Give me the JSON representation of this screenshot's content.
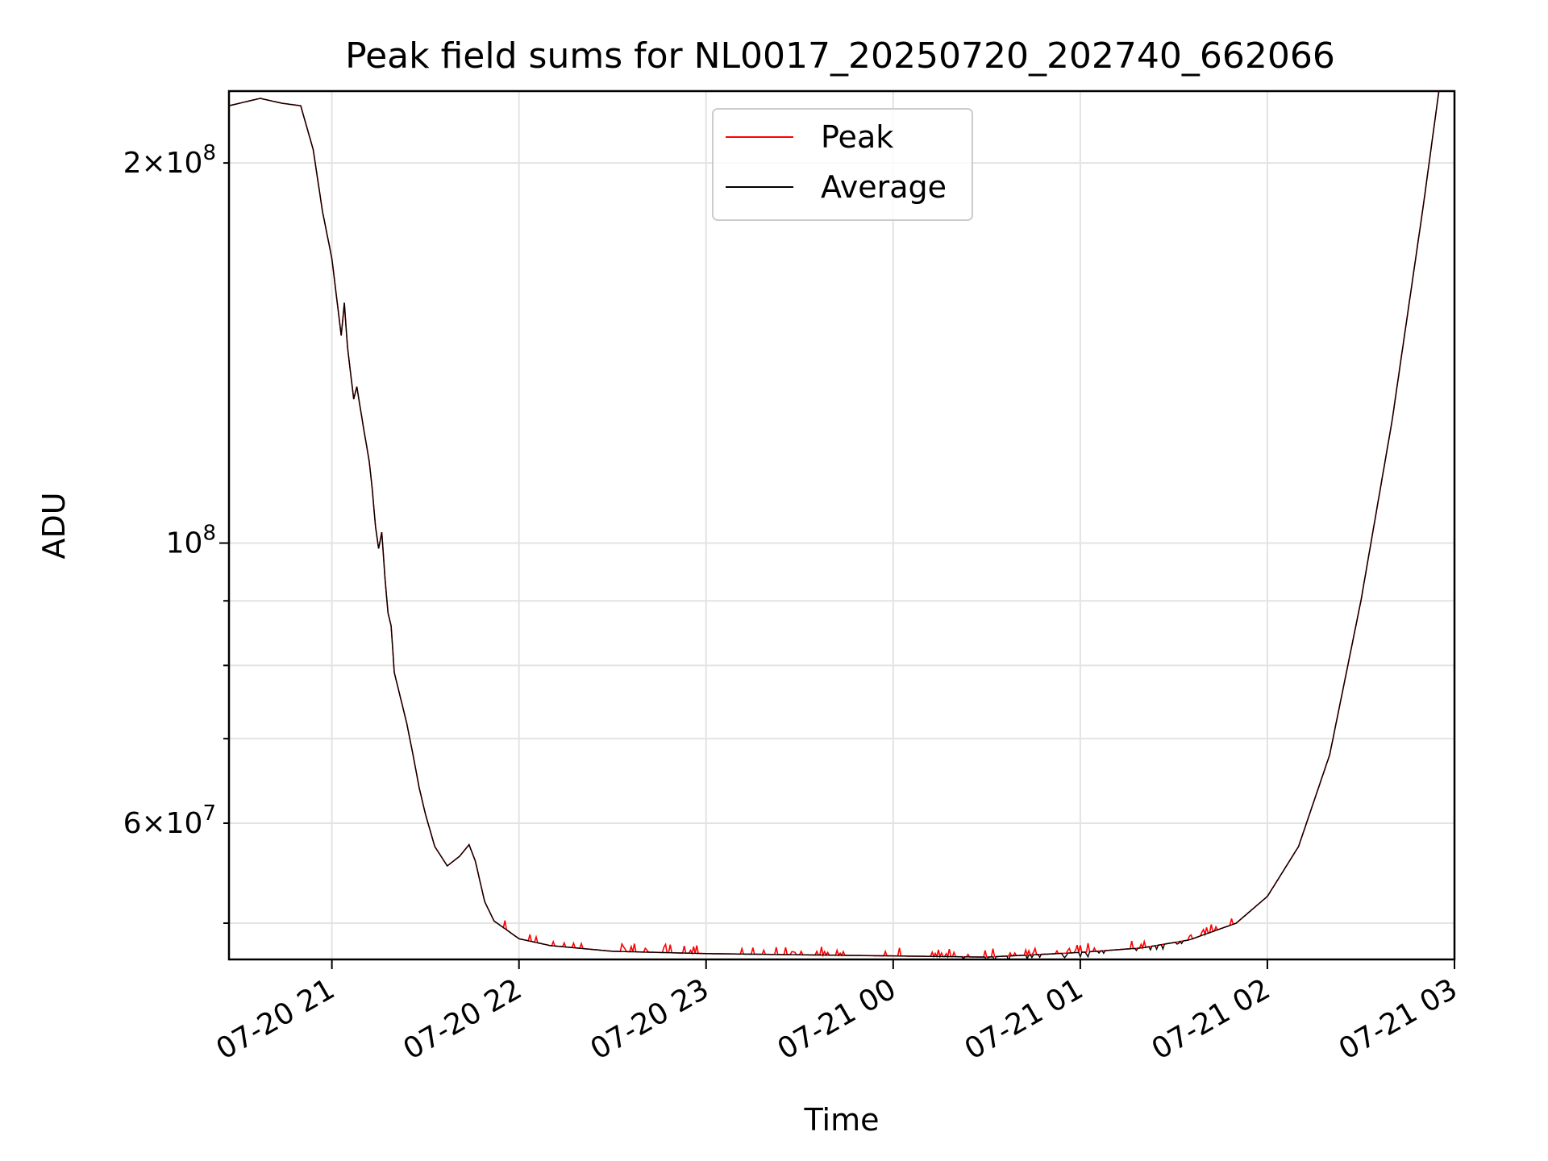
{
  "chart_data": {
    "type": "line",
    "title": "Peak field sums for NL0017_20250720_202740_662066",
    "xlabel": "Time",
    "ylabel": "ADU",
    "x_ticks": [
      "07-20 21",
      "07-20 22",
      "07-20 23",
      "07-21 00",
      "07-21 01",
      "07-21 02",
      "07-21 03"
    ],
    "y_ticks_major": [
      {
        "value": 100000000,
        "mantissa": "",
        "base": "10",
        "exp": "8"
      }
    ],
    "y_ticks_minor_labeled": [
      {
        "value": 60000000,
        "mantissa": "6",
        "base": "10",
        "exp": "7"
      },
      {
        "value": 200000000,
        "mantissa": "2",
        "base": "10",
        "exp": "8"
      }
    ],
    "y_ticks_minor_unlabeled": [
      50000000,
      70000000,
      80000000,
      90000000
    ],
    "x_range": [
      "2025-07-20 20:27",
      "2025-07-21 03:00"
    ],
    "y_range": [
      46800000,
      228000000
    ],
    "y_scale": "log",
    "grid": true,
    "legend_position": "upper-center",
    "series": [
      {
        "name": "Peak",
        "color": "#ff0000",
        "jitter": true,
        "points": [
          [
            "2025-07-20 20:27",
            222000000
          ],
          [
            "2025-07-20 20:37",
            225000000
          ],
          [
            "2025-07-20 20:44",
            223000000
          ],
          [
            "2025-07-20 20:50",
            222000000
          ],
          [
            "2025-07-20 20:54",
            205000000
          ],
          [
            "2025-07-20 20:57",
            183000000
          ],
          [
            "2025-07-20 21:00",
            168000000
          ],
          [
            "2025-07-20 21:03",
            146000000
          ],
          [
            "2025-07-20 21:04",
            155000000
          ],
          [
            "2025-07-20 21:05",
            143000000
          ],
          [
            "2025-07-20 21:07",
            130000000
          ],
          [
            "2025-07-20 21:08",
            133000000
          ],
          [
            "2025-07-20 21:10",
            124000000
          ],
          [
            "2025-07-20 21:12",
            116000000
          ],
          [
            "2025-07-20 21:13",
            110000000
          ],
          [
            "2025-07-20 21:14",
            103000000
          ],
          [
            "2025-07-20 21:15",
            99000000
          ],
          [
            "2025-07-20 21:16",
            102000000
          ],
          [
            "2025-07-20 21:17",
            94000000
          ],
          [
            "2025-07-20 21:18",
            88000000
          ],
          [
            "2025-07-20 21:19",
            86000000
          ],
          [
            "2025-07-20 21:20",
            79000000
          ],
          [
            "2025-07-20 21:24",
            72000000
          ],
          [
            "2025-07-20 21:26",
            68000000
          ],
          [
            "2025-07-20 21:28",
            64000000
          ],
          [
            "2025-07-20 21:30",
            61000000
          ],
          [
            "2025-07-20 21:33",
            57500000
          ],
          [
            "2025-07-20 21:37",
            55500000
          ],
          [
            "2025-07-20 21:41",
            56500000
          ],
          [
            "2025-07-20 21:44",
            57700000
          ],
          [
            "2025-07-20 21:46",
            56000000
          ],
          [
            "2025-07-20 21:49",
            52000000
          ],
          [
            "2025-07-20 21:52",
            50200000
          ],
          [
            "2025-07-20 21:57",
            49200000
          ],
          [
            "2025-07-20 22:00",
            48600000
          ],
          [
            "2025-07-20 22:10",
            48000000
          ],
          [
            "2025-07-20 22:30",
            47500000
          ],
          [
            "2025-07-20 23:00",
            47300000
          ],
          [
            "2025-07-20 23:30",
            47200000
          ],
          [
            "2025-07-21 00:00",
            47100000
          ],
          [
            "2025-07-21 00:30",
            47000000
          ],
          [
            "2025-07-21 01:00",
            47400000
          ],
          [
            "2025-07-21 01:20",
            47800000
          ],
          [
            "2025-07-21 01:35",
            48500000
          ],
          [
            "2025-07-21 01:50",
            50000000
          ],
          [
            "2025-07-21 02:00",
            52500000
          ],
          [
            "2025-07-21 02:10",
            57500000
          ],
          [
            "2025-07-21 02:20",
            68000000
          ],
          [
            "2025-07-21 02:30",
            90000000
          ],
          [
            "2025-07-21 02:40",
            125000000
          ],
          [
            "2025-07-21 02:50",
            185000000
          ],
          [
            "2025-07-21 02:55",
            228000000
          ]
        ]
      },
      {
        "name": "Average",
        "color": "#000000",
        "jitter": false,
        "points": [
          [
            "2025-07-20 20:27",
            222000000
          ],
          [
            "2025-07-20 20:37",
            225000000
          ],
          [
            "2025-07-20 20:44",
            223000000
          ],
          [
            "2025-07-20 20:50",
            222000000
          ],
          [
            "2025-07-20 20:54",
            205000000
          ],
          [
            "2025-07-20 20:57",
            183000000
          ],
          [
            "2025-07-20 21:00",
            168000000
          ],
          [
            "2025-07-20 21:03",
            146000000
          ],
          [
            "2025-07-20 21:04",
            155000000
          ],
          [
            "2025-07-20 21:05",
            143000000
          ],
          [
            "2025-07-20 21:07",
            130000000
          ],
          [
            "2025-07-20 21:08",
            133000000
          ],
          [
            "2025-07-20 21:10",
            124000000
          ],
          [
            "2025-07-20 21:12",
            116000000
          ],
          [
            "2025-07-20 21:13",
            110000000
          ],
          [
            "2025-07-20 21:14",
            103000000
          ],
          [
            "2025-07-20 21:15",
            99000000
          ],
          [
            "2025-07-20 21:16",
            102000000
          ],
          [
            "2025-07-20 21:17",
            94000000
          ],
          [
            "2025-07-20 21:18",
            88000000
          ],
          [
            "2025-07-20 21:19",
            86000000
          ],
          [
            "2025-07-20 21:20",
            79000000
          ],
          [
            "2025-07-20 21:24",
            72000000
          ],
          [
            "2025-07-20 21:26",
            68000000
          ],
          [
            "2025-07-20 21:28",
            64000000
          ],
          [
            "2025-07-20 21:30",
            61000000
          ],
          [
            "2025-07-20 21:33",
            57500000
          ],
          [
            "2025-07-20 21:37",
            55500000
          ],
          [
            "2025-07-20 21:41",
            56500000
          ],
          [
            "2025-07-20 21:44",
            57700000
          ],
          [
            "2025-07-20 21:46",
            56000000
          ],
          [
            "2025-07-20 21:49",
            52000000
          ],
          [
            "2025-07-20 21:52",
            50200000
          ],
          [
            "2025-07-20 21:57",
            49200000
          ],
          [
            "2025-07-20 22:00",
            48600000
          ],
          [
            "2025-07-20 22:10",
            48000000
          ],
          [
            "2025-07-20 22:30",
            47500000
          ],
          [
            "2025-07-20 23:00",
            47300000
          ],
          [
            "2025-07-20 23:30",
            47200000
          ],
          [
            "2025-07-21 00:00",
            47100000
          ],
          [
            "2025-07-21 00:30",
            47000000
          ],
          [
            "2025-07-21 01:00",
            47400000
          ],
          [
            "2025-07-21 01:20",
            47800000
          ],
          [
            "2025-07-21 01:35",
            48500000
          ],
          [
            "2025-07-21 01:50",
            50000000
          ],
          [
            "2025-07-21 02:00",
            52500000
          ],
          [
            "2025-07-21 02:10",
            57500000
          ],
          [
            "2025-07-21 02:20",
            68000000
          ],
          [
            "2025-07-21 02:30",
            90000000
          ],
          [
            "2025-07-21 02:40",
            125000000
          ],
          [
            "2025-07-21 02:50",
            185000000
          ],
          [
            "2025-07-21 02:55",
            228000000
          ]
        ]
      }
    ]
  }
}
